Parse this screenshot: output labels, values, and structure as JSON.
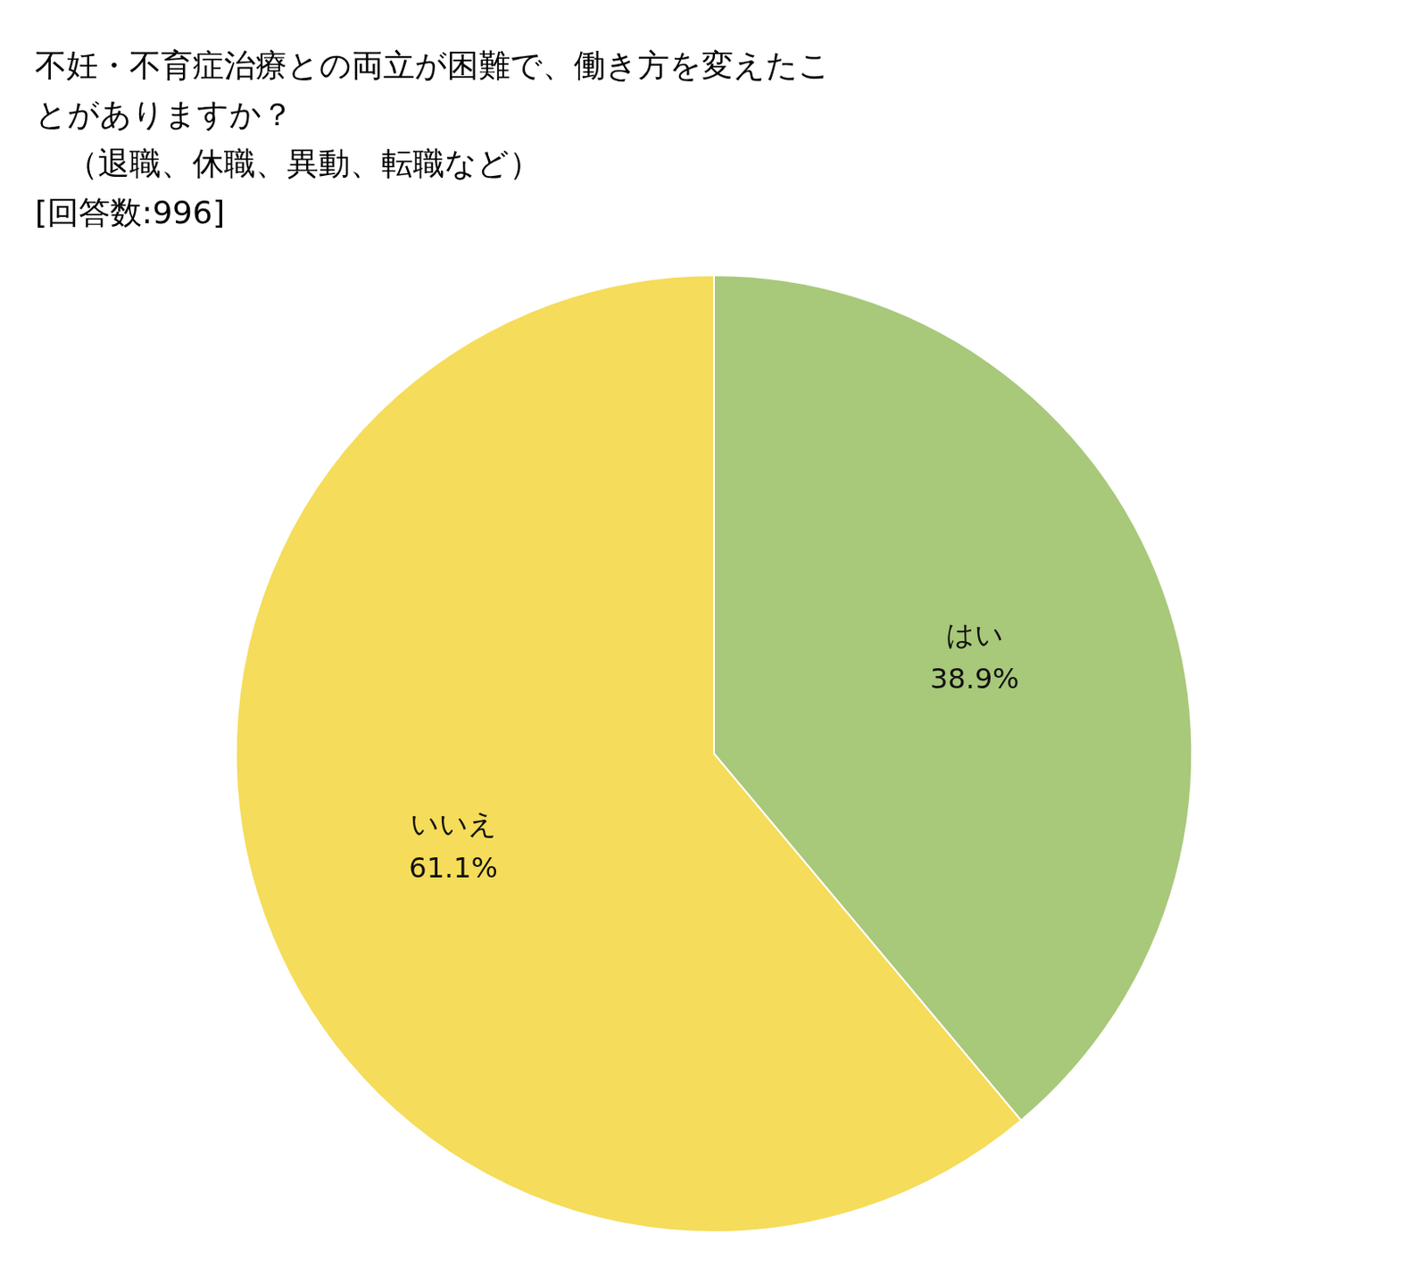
{
  "chart_data": {
    "type": "pie",
    "title": [
      "不妊・不育症治療との両立が困難で、働き方を変えたこ",
      "とがありますか？",
      "　（退職、休職、異動、転職など）",
      "[回答数:996]"
    ],
    "categories": [
      "はい",
      "いいえ"
    ],
    "values": [
      38.9,
      61.1
    ],
    "value_labels": [
      "38.9%",
      "61.1%"
    ],
    "colors": [
      "#a8c87a",
      "#f5dc5a"
    ],
    "data_labels": true,
    "legend": false
  }
}
